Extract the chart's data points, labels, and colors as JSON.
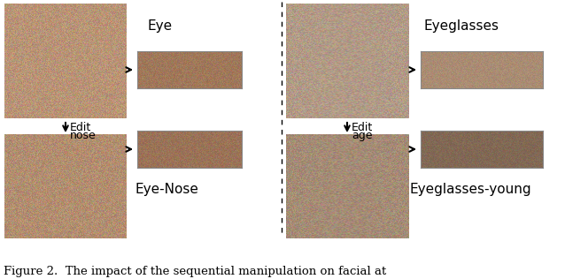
{
  "title": "Figure 2.  The impact of the sequential manipulation on facial at",
  "title_fontsize": 9.5,
  "bg_color": "#ffffff",
  "left_label1": "Eye",
  "left_label2": "Eye-Nose",
  "left_arrow_label1": "Edit",
  "left_arrow_label2": "nose",
  "right_label1": "Eyeglasses",
  "right_label2": "Eyeglasses-young",
  "right_arrow_label1": "Edit",
  "right_arrow_label2": "age",
  "text_color": "#000000",
  "label_fontsize": 11,
  "arrow_fontsize": 9,
  "face_woman1_color": [
    185,
    148,
    118
  ],
  "face_woman2_color": [
    178,
    142,
    112
  ],
  "face_man1_color": [
    178,
    155,
    135
  ],
  "face_man2_color": [
    165,
    140,
    118
  ],
  "eye_woman1_color": [
    160,
    120,
    90
  ],
  "eye_woman2_color": [
    155,
    115,
    88
  ],
  "eye_man1_color": [
    170,
    140,
    115
  ],
  "eye_man2_color": [
    130,
    105,
    85
  ]
}
